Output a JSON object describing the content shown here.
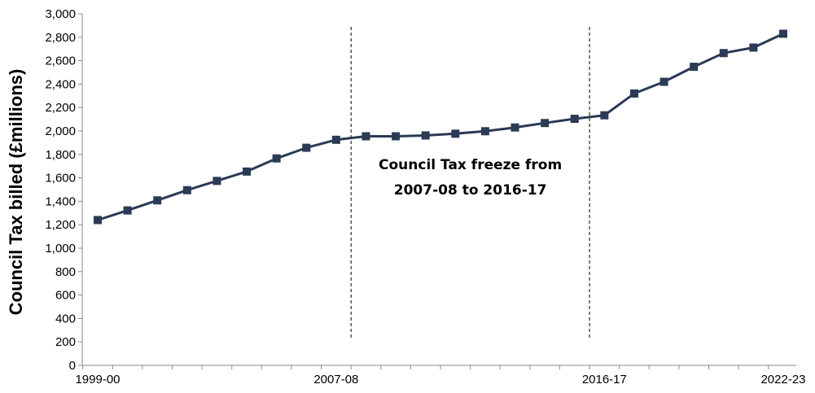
{
  "chart_data": {
    "type": "line",
    "title": "",
    "ylabel": "Council Tax billed (£millions)",
    "xlabel": "",
    "ylim": [
      0,
      3000
    ],
    "ytick_step": 200,
    "yticks": [
      "0",
      "200",
      "400",
      "600",
      "800",
      "1,000",
      "1,200",
      "1,400",
      "1,600",
      "1,800",
      "2,000",
      "2,200",
      "2,400",
      "2,600",
      "2,800",
      "3,000"
    ],
    "x_labels": [
      {
        "index": 0,
        "label": "1999-00"
      },
      {
        "index": 8,
        "label": "2007-08"
      },
      {
        "index": 17,
        "label": "2016-17"
      },
      {
        "index": 23,
        "label": "2022-23"
      }
    ],
    "series": [
      {
        "name": "Council Tax billed",
        "color": "#2b3a55",
        "values": [
          1240,
          1322,
          1408,
          1495,
          1574,
          1654,
          1766,
          1857,
          1925,
          1955,
          1955,
          1962,
          1977,
          1998,
          2030,
          2068,
          2104,
          2134,
          2320,
          2420,
          2548,
          2665,
          2712,
          2830
        ]
      }
    ],
    "freeze_lines_after_index": [
      8,
      16
    ],
    "annotation": [
      "Council Tax freeze from",
      "2007-08 to 2016-17"
    ],
    "grid": false
  }
}
